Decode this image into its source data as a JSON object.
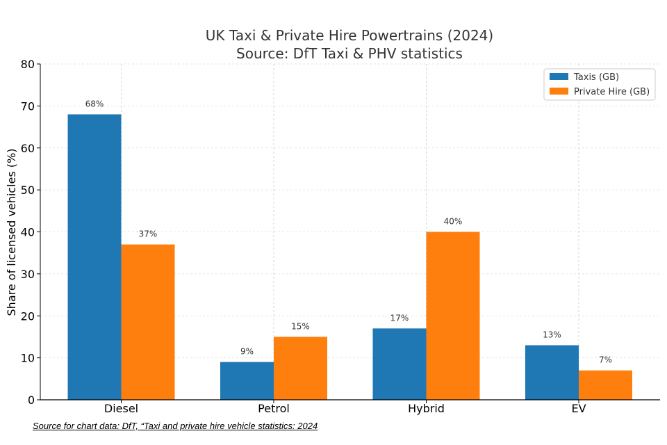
{
  "chart_data": {
    "type": "bar",
    "title": "UK Taxi & Private Hire Powertrains (2024)",
    "subtitle": "Source: DfT Taxi & PHV statistics",
    "xlabel": "",
    "ylabel": "Share of licensed vehicles (%)",
    "categories": [
      "Diesel",
      "Petrol",
      "Hybrid",
      "EV"
    ],
    "series": [
      {
        "name": "Taxis (GB)",
        "values": [
          68,
          9,
          17,
          13
        ],
        "color": "#1f77b4"
      },
      {
        "name": "Private Hire (GB)",
        "values": [
          37,
          15,
          40,
          7
        ],
        "color": "#ff7f0e"
      }
    ],
    "data_labels": [
      [
        "68%",
        "9%",
        "17%",
        "13%"
      ],
      [
        "37%",
        "15%",
        "40%",
        "7%"
      ]
    ],
    "ylim": [
      0,
      80
    ],
    "yticks": [
      0,
      10,
      20,
      30,
      40,
      50,
      60,
      70,
      80
    ],
    "grid": true,
    "legend_position": "top-right"
  },
  "footer": {
    "source_note": "Source for chart data: DfT, “Taxi and private hire vehicle statistics: 2024"
  }
}
